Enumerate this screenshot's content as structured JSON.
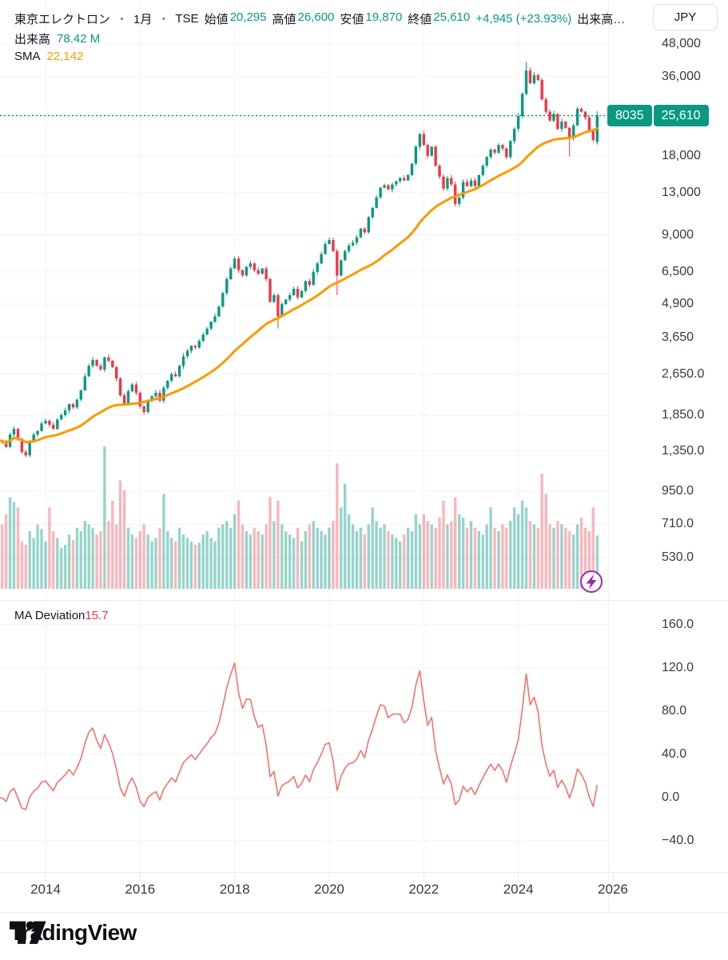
{
  "header": {
    "symbol": "東京エレクトロン",
    "sep": "・",
    "interval": "1月",
    "exchange": "TSE",
    "ohlc": [
      {
        "label": "始値",
        "value": "20,295"
      },
      {
        "label": "高値",
        "value": "26,600"
      },
      {
        "label": "安値",
        "value": "19,870"
      },
      {
        "label": "終値",
        "value": "25,610"
      }
    ],
    "change": "+4,945 (+23.93%)",
    "volume_truncated": "出来高…",
    "volume_label": "出来高",
    "volume_value": "78.42 M",
    "sma_label": "SMA",
    "sma_value": "22,142",
    "currency_button": "JPY"
  },
  "price_badge": {
    "ticker": "8035",
    "price": "25,610"
  },
  "indicator": {
    "label": "MA Deviation",
    "value": "15.7"
  },
  "footer": {
    "brand": "TradingView"
  },
  "colors": {
    "up": "#089981",
    "down": "#f23645",
    "vol_up": "rgba(8,153,129,0.42)",
    "vol_down": "rgba(242,54,69,0.36)",
    "sma": "#ff9800",
    "deviation_line": "#f5726b",
    "last_price_line": "#089981",
    "badge_bg": "#089981",
    "grid": "#f0f3fa",
    "axis_text": "#363a45",
    "lightning": "#9c27b0"
  },
  "chart_data": {
    "type": "candlestick+volume+line",
    "title": "東京エレクトロン (8035) monthly, TSE, log scale",
    "start_month": "2013-01",
    "end_month": "2025-09",
    "first_open": 1450,
    "last_price": 25610,
    "sma_window": 36,
    "closes": [
      1480,
      1470,
      1400,
      1560,
      1640,
      1500,
      1340,
      1300,
      1470,
      1560,
      1610,
      1720,
      1760,
      1700,
      1640,
      1780,
      1850,
      1930,
      2040,
      1980,
      2120,
      2300,
      2600,
      2850,
      3000,
      2850,
      2760,
      3070,
      2980,
      2820,
      2550,
      2200,
      2050,
      2280,
      2420,
      2250,
      2000,
      1900,
      2100,
      2180,
      2250,
      2100,
      2350,
      2500,
      2650,
      2600,
      2850,
      3100,
      3250,
      3400,
      3350,
      3550,
      3750,
      3950,
      4200,
      4400,
      4800,
      5400,
      6100,
      6700,
      7300,
      6600,
      6300,
      6800,
      7000,
      6600,
      6400,
      6700,
      6100,
      5000,
      5300,
      4400,
      4900,
      5100,
      5300,
      5600,
      5200,
      5500,
      6000,
      5800,
      6500,
      7000,
      7600,
      8300,
      8600,
      7800,
      6300,
      7200,
      7800,
      8200,
      8400,
      8800,
      9500,
      9200,
      10500,
      11400,
      12500,
      13600,
      13900,
      13400,
      14000,
      14400,
      14800,
      14500,
      15200,
      16800,
      19500,
      21800,
      19800,
      18000,
      19500,
      16500,
      15000,
      13500,
      14800,
      14000,
      11800,
      12500,
      14300,
      13800,
      14500,
      13800,
      15200,
      16500,
      17800,
      19000,
      18500,
      19800,
      19200,
      17800,
      20500,
      22800,
      25500,
      31000,
      38000,
      34000,
      36500,
      35000,
      29500,
      26500,
      24500,
      26000,
      22800,
      24300,
      23000,
      21000,
      23500,
      27200,
      26500,
      25200,
      22500,
      20665,
      25610
    ],
    "volumes_m": [
      80,
      95,
      110,
      135,
      128,
      120,
      70,
      65,
      85,
      75,
      95,
      88,
      70,
      120,
      85,
      75,
      60,
      65,
      80,
      72,
      90,
      85,
      100,
      95,
      90,
      80,
      85,
      210,
      100,
      130,
      95,
      160,
      145,
      90,
      80,
      75,
      85,
      95,
      80,
      70,
      75,
      90,
      140,
      85,
      75,
      70,
      90,
      80,
      75,
      70,
      65,
      68,
      80,
      85,
      75,
      70,
      90,
      95,
      100,
      90,
      110,
      130,
      95,
      85,
      80,
      90,
      85,
      80,
      95,
      135,
      100,
      130,
      95,
      85,
      80,
      75,
      90,
      70,
      85,
      95,
      100,
      90,
      85,
      80,
      90,
      100,
      185,
      120,
      155,
      110,
      95,
      85,
      90,
      80,
      95,
      120,
      100,
      90,
      95,
      85,
      80,
      75,
      70,
      80,
      90,
      85,
      110,
      95,
      110,
      100,
      95,
      90,
      105,
      130,
      95,
      100,
      135,
      110,
      105,
      90,
      100,
      90,
      85,
      80,
      95,
      120,
      90,
      85,
      95,
      90,
      100,
      120,
      110,
      130,
      120,
      100,
      95,
      90,
      170,
      140,
      95,
      90,
      100,
      95,
      90,
      85,
      80,
      95,
      105,
      90,
      85,
      120,
      78.42
    ],
    "candle_overrides": {
      "71": {
        "low": 3950
      },
      "86": {
        "low": 5300
      },
      "134": {
        "high": 41000
      },
      "145": {
        "low": 17900
      },
      "152": {
        "open": 20295,
        "high": 26600,
        "low": 19870
      }
    },
    "price_axis_ticks": [
      {
        "label": "48,000",
        "value": 48000
      },
      {
        "label": "36,000",
        "value": 36000
      },
      {
        "label": "18,000",
        "value": 18000
      },
      {
        "label": "13,000",
        "value": 13000
      },
      {
        "label": "9,000",
        "value": 9000
      },
      {
        "label": "6,500",
        "value": 6500
      },
      {
        "label": "4,900",
        "value": 4900
      },
      {
        "label": "3,650",
        "value": 3650
      },
      {
        "label": "2,650.0",
        "value": 2650
      },
      {
        "label": "1,850.0",
        "value": 1850
      },
      {
        "label": "1,350.0",
        "value": 1350
      },
      {
        "label": "950.0",
        "value": 950
      },
      {
        "label": "710.0",
        "value": 710
      },
      {
        "label": "530.0",
        "value": 530
      }
    ],
    "deviation_axis_ticks": [
      {
        "label": "160.0",
        "value": 160
      },
      {
        "label": "120.0",
        "value": 120
      },
      {
        "label": "80.0",
        "value": 80
      },
      {
        "label": "40.0",
        "value": 40
      },
      {
        "label": "0.0",
        "value": 0
      },
      {
        "label": "−40.0",
        "value": -40
      }
    ],
    "year_ticks": [
      "2014",
      "2016",
      "2018",
      "2020",
      "2022",
      "2024",
      "2026"
    ]
  }
}
